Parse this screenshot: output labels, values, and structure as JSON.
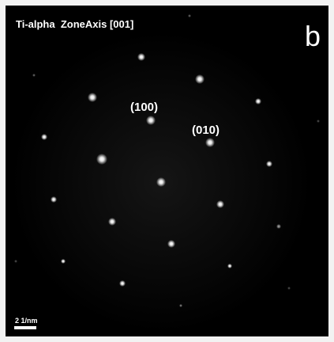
{
  "label": "Ti-alpha  ZoneAxis [001]",
  "panel": "b",
  "spots": {
    "a": "(100)",
    "b": "(010)"
  },
  "scale_bar": "2 1/nm"
}
